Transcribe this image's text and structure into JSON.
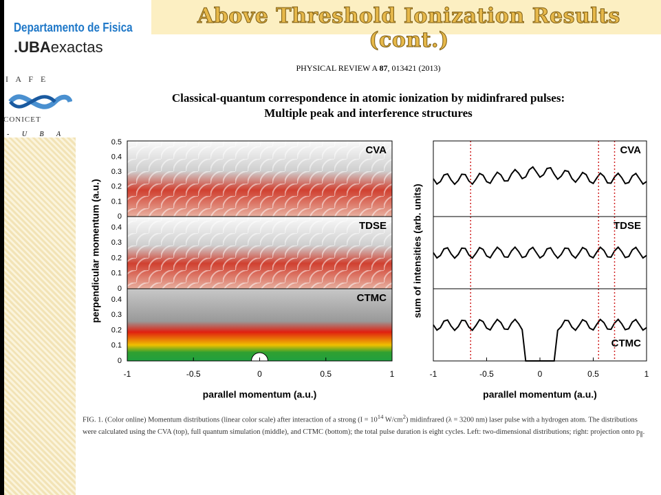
{
  "header": {
    "title": "Above Threshold Ionization Results (cont.)",
    "logo_dept": "Departamento de Fisica",
    "logo_uba": ".UBA",
    "logo_exactas": "exactas",
    "logo_iafe": "I A F E",
    "logo_conicet": "CONICET",
    "logo_uba2": "- U B A"
  },
  "citation": {
    "journal": "PHYSICAL REVIEW A",
    "volume": "87",
    "rest": ", 013421 (2013)"
  },
  "paper_title": [
    "Classical-quantum correspondence in atomic ionization by midinfrared pulses:",
    "Multiple peak and interference structures"
  ],
  "figure": {
    "left": {
      "y_label": "perpendicular momentum (a.u.)",
      "x_label": "parallel momentum (a.u.)",
      "xticks": [
        "-1",
        "-0.5",
        "0",
        "0.5",
        "1"
      ],
      "panels": [
        {
          "label": "CVA",
          "yticks": [
            "0.5",
            "0.4",
            "0.3",
            "0.2",
            "0.1",
            "0"
          ]
        },
        {
          "label": "TDSE",
          "yticks": [
            "0.4",
            "0.3",
            "0.2",
            "0.1",
            "0"
          ]
        },
        {
          "label": "CTMC",
          "yticks": [
            "0.4",
            "0.3",
            "0.2",
            "0.1",
            "0"
          ]
        }
      ]
    },
    "right": {
      "y_label": "sum of intensities (arb. units)",
      "x_label": "parallel momentum (a.u.)",
      "xticks": [
        "-1",
        "-0.5",
        "0",
        "0.5",
        "1"
      ],
      "panels": [
        {
          "label": "CVA"
        },
        {
          "label": "TDSE"
        },
        {
          "label": "CTMC"
        }
      ]
    }
  },
  "caption": [
    "FIG. 1. (Color online) Momentum distributions (linear color scale) after interaction of a strong (I = 10",
    "14",
    " W/cm",
    "2",
    ") midinfrared (λ = 3200 nm) laser pulse with a hydrogen atom. The distributions were calculated using the CVA (top), full quantum simulation (middle), and CTMC (bottom); the total pulse duration is eight cycles. Left: two-dimensional distributions; right: projection onto p",
    "∥",
    "."
  ]
}
